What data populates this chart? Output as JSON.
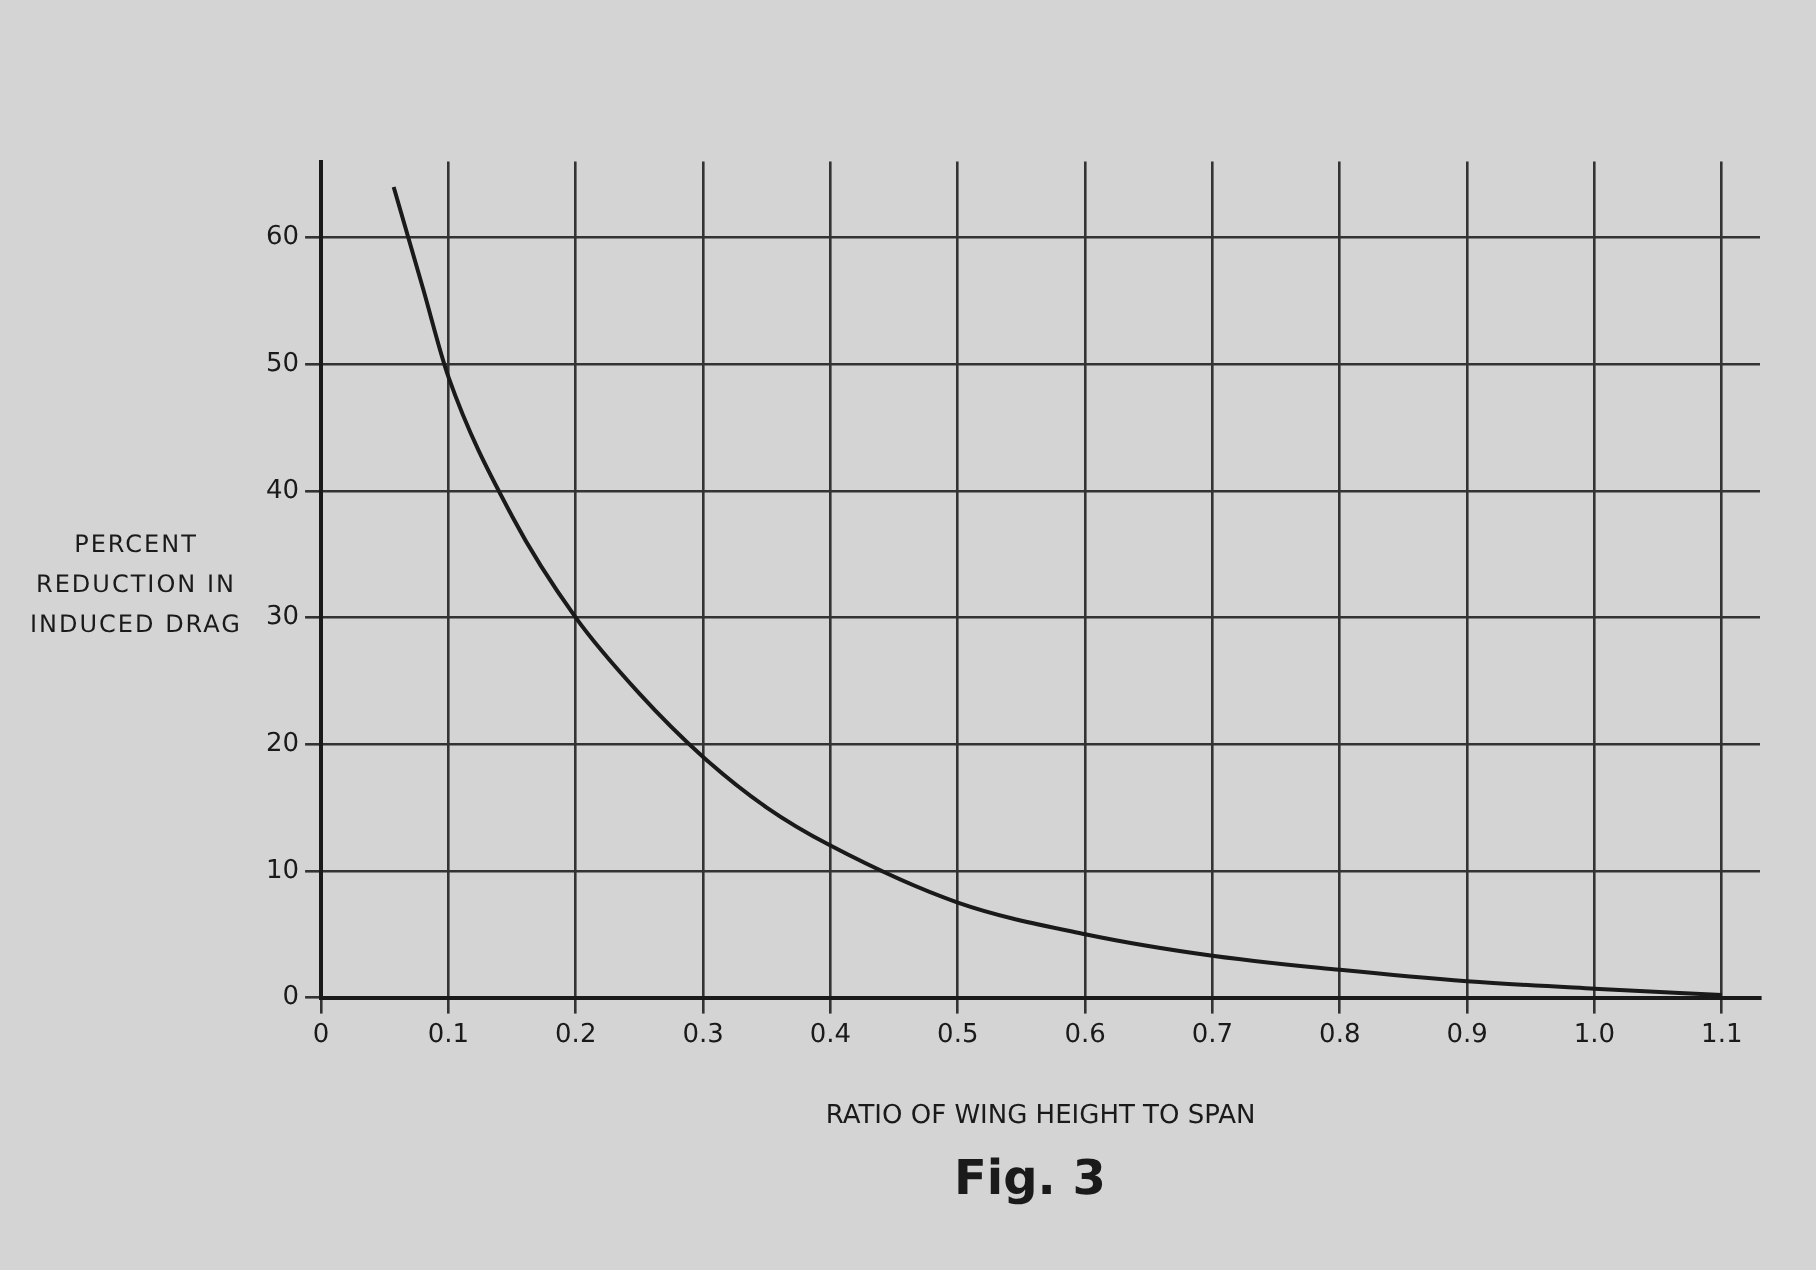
{
  "chart_data": {
    "type": "line",
    "xlabel": "RATIO OF WING HEIGHT TO SPAN",
    "ylabel": "PERCENT REDUCTION IN INDUCED DRAG",
    "annotations": [
      "Fig. 3"
    ],
    "x": [
      0.057,
      0.08,
      0.1,
      0.15,
      0.2,
      0.25,
      0.3,
      0.35,
      0.4,
      0.5,
      0.6,
      0.7,
      0.8,
      0.9,
      1.0,
      1.1
    ],
    "series": [
      {
        "color": "#1a1a1a",
        "values": [
          64,
          56,
          49,
          38,
          30,
          24,
          19,
          15,
          12,
          7.5,
          5,
          3.3,
          2.2,
          1.3,
          0.7,
          0.2
        ]
      }
    ],
    "xlim": [
      0,
      1.13
    ],
    "xticks": [
      0,
      0.1,
      0.2,
      0.3,
      0.4,
      0.5,
      0.6,
      0.7,
      0.8,
      0.9,
      {
        "value": 1.0,
        "label": "1.0"
      },
      1.1
    ],
    "ylim": [
      0,
      66
    ],
    "yticks": [
      0,
      10,
      20,
      30,
      40,
      50,
      60
    ],
    "grid": true,
    "marker": "none",
    "line_style": "solid",
    "legend": false
  }
}
